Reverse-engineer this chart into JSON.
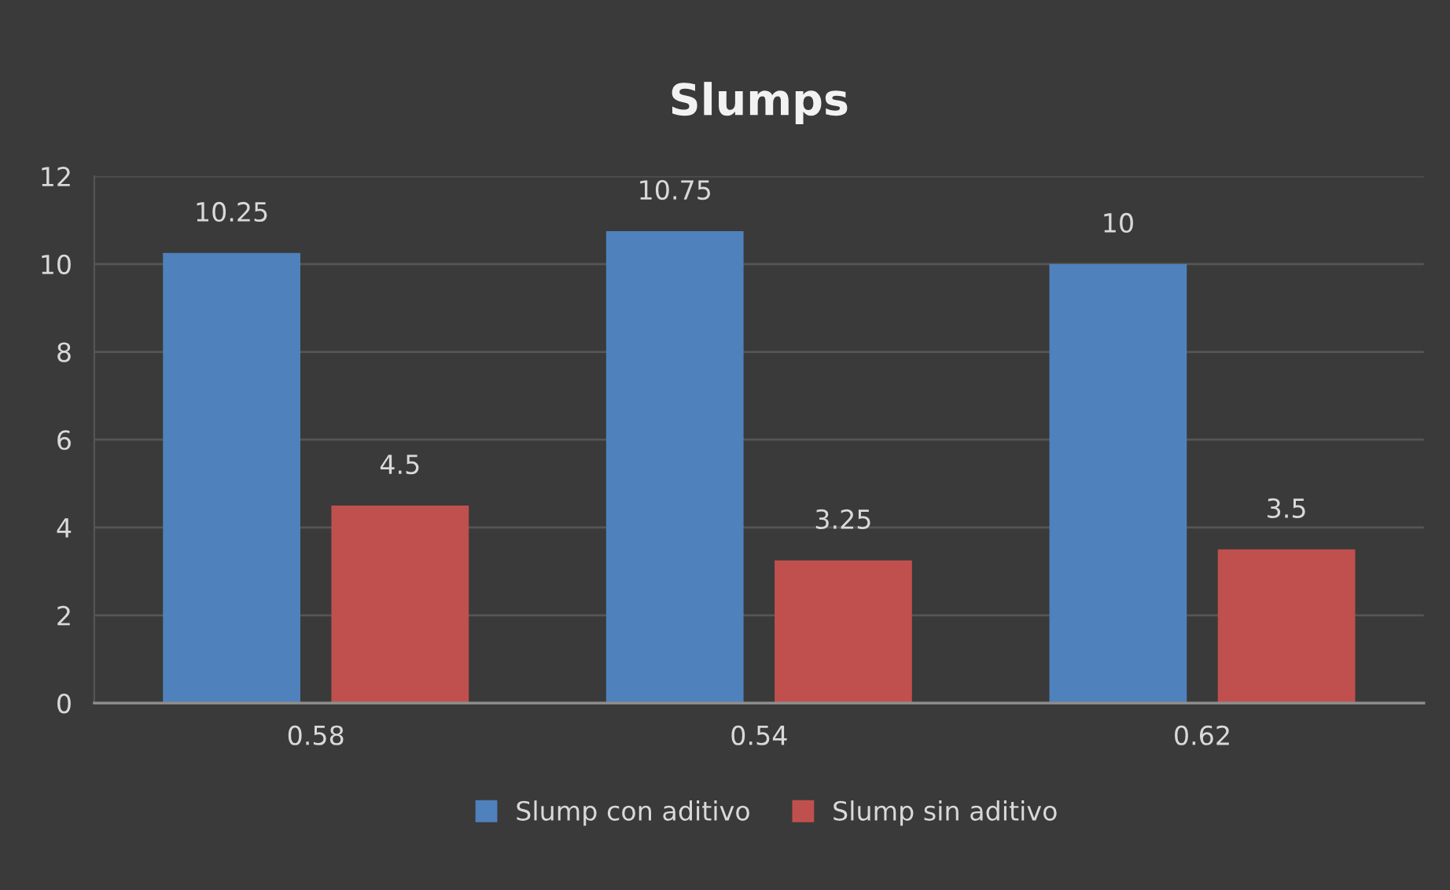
{
  "chart_data": {
    "type": "bar",
    "title": "Slumps",
    "categories": [
      "0.58",
      "0.54",
      "0.62"
    ],
    "series": [
      {
        "name": "Slump con aditivo",
        "color": "#4f81bd",
        "values": [
          10.25,
          10.75,
          10
        ]
      },
      {
        "name": "Slump sin aditivo",
        "color": "#c0504d",
        "values": [
          4.5,
          3.25,
          3.5
        ]
      }
    ],
    "ylim": [
      0,
      12
    ],
    "yticks": [
      0,
      2,
      4,
      6,
      8,
      10,
      12
    ],
    "grid": "y",
    "legend": "bottom",
    "data_labels": true
  }
}
